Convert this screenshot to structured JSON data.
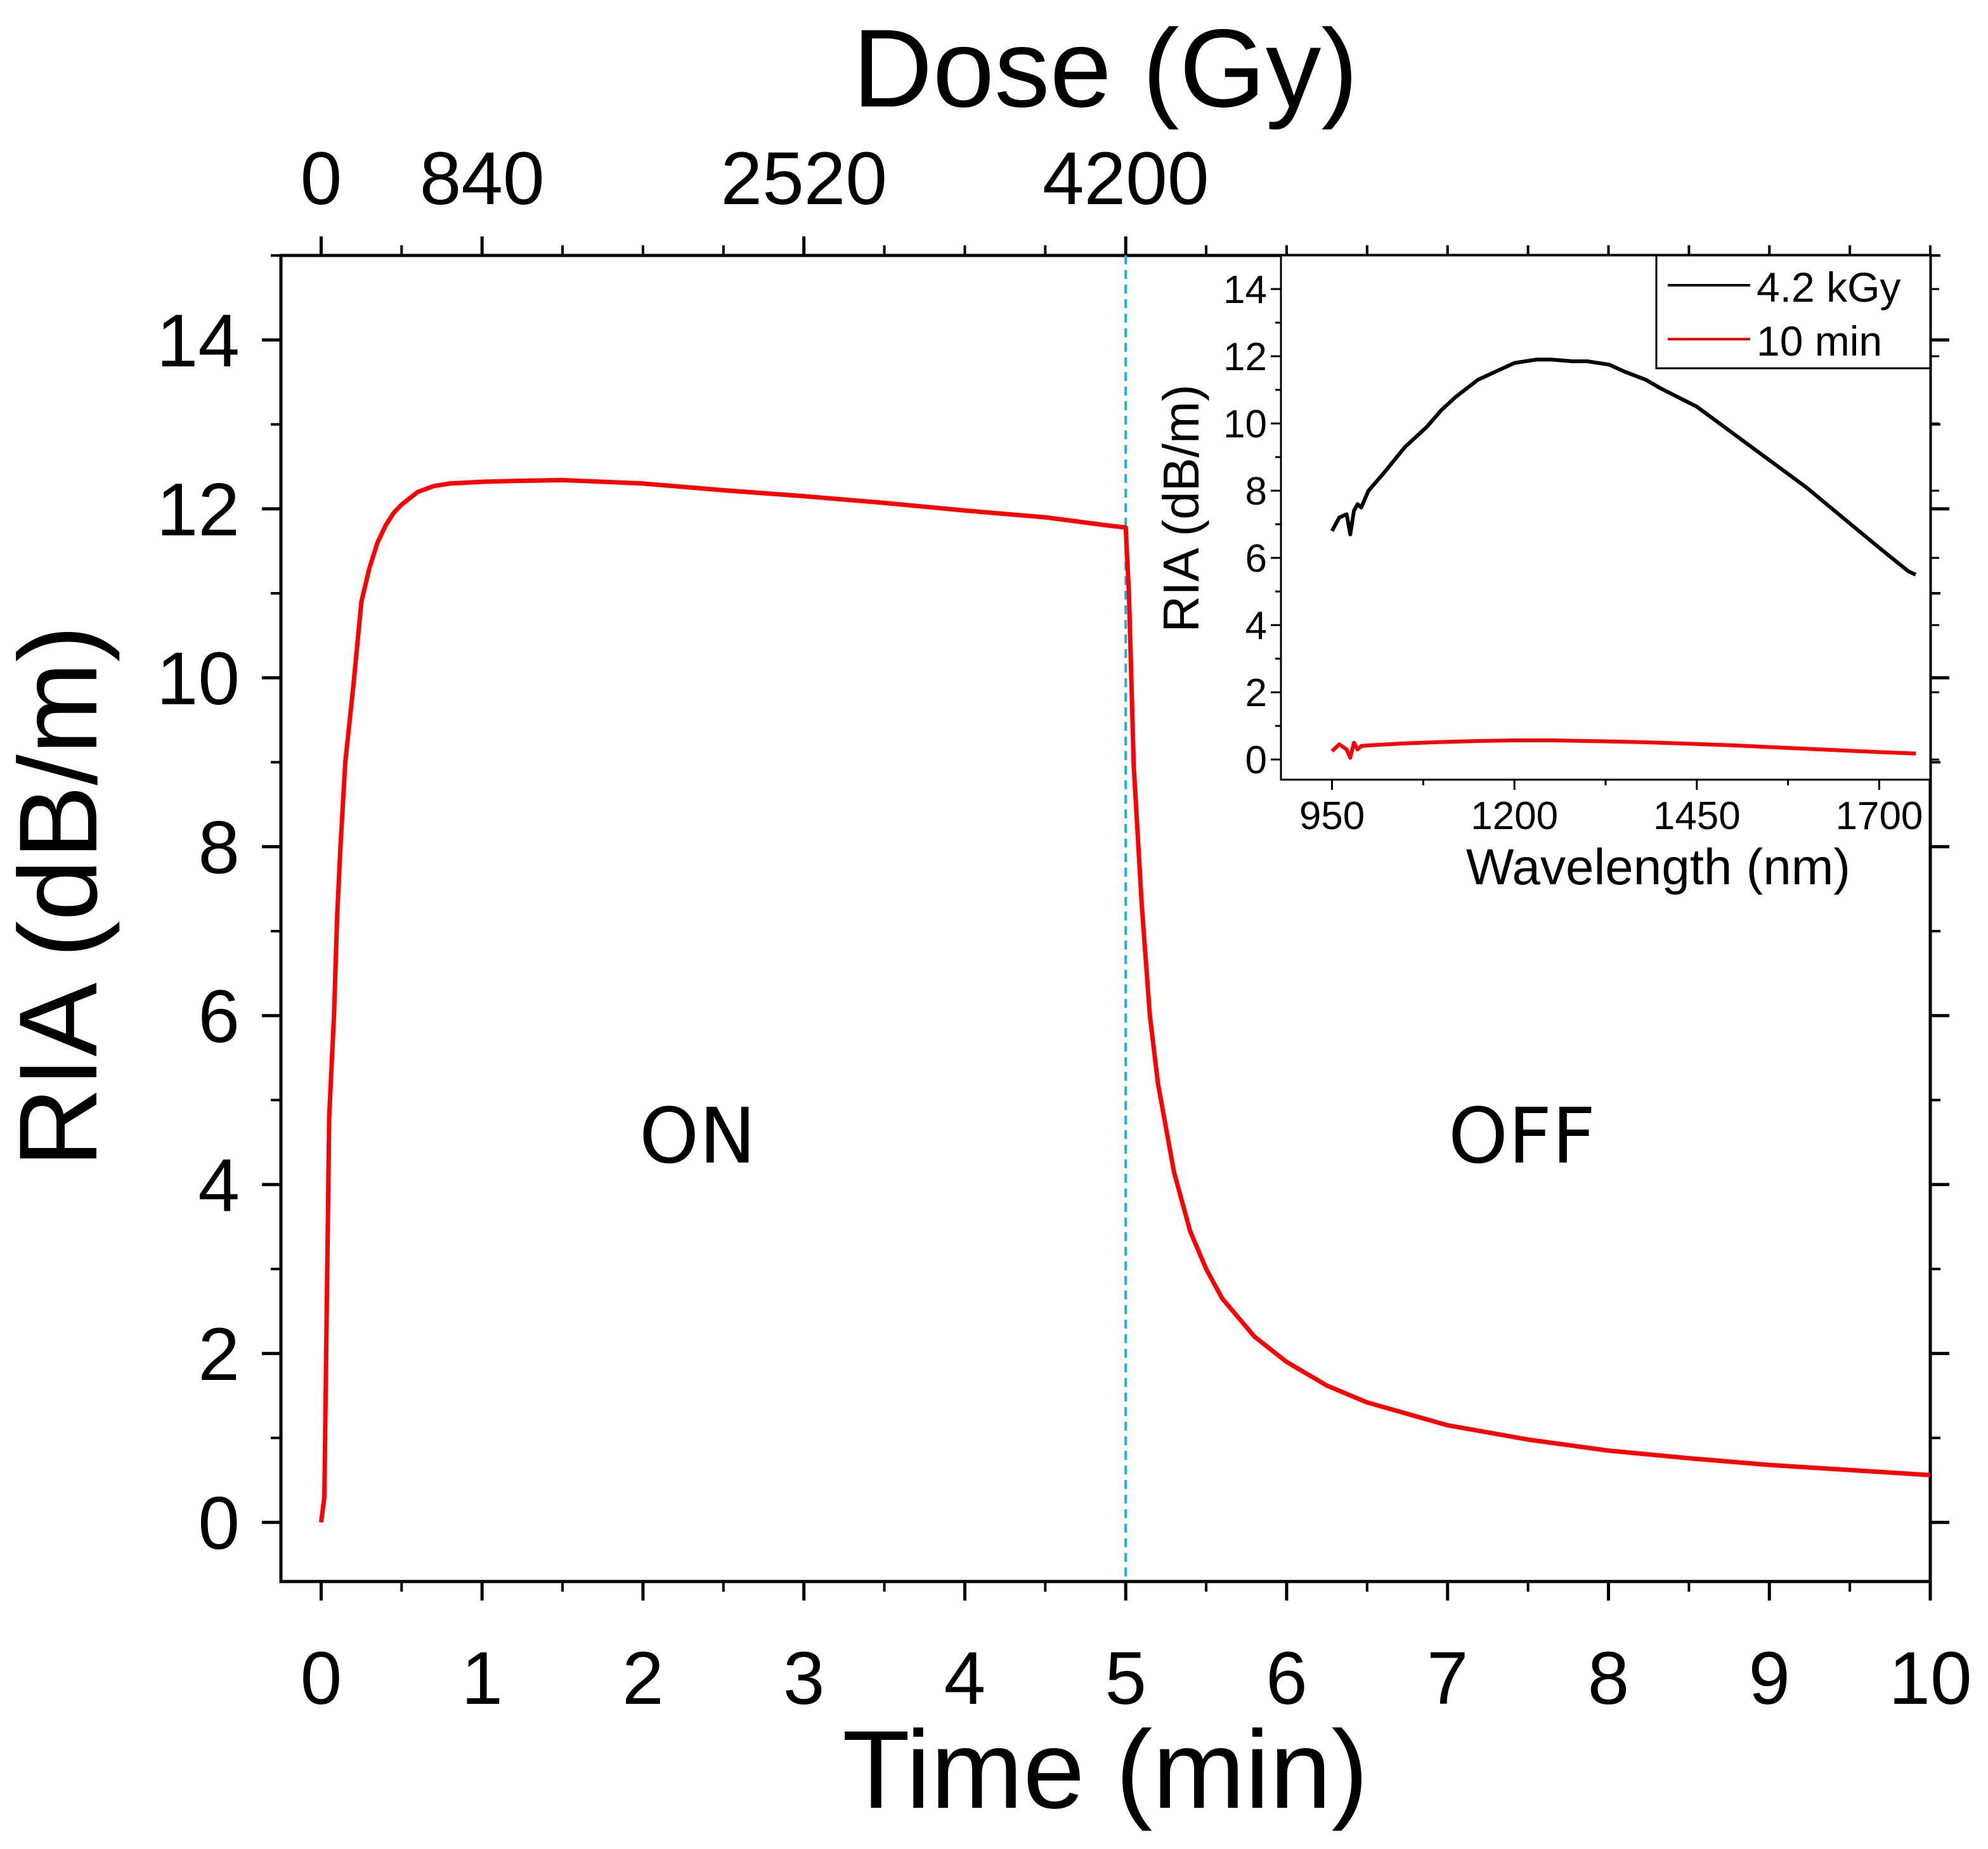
{
  "chart_data": [
    {
      "id": "main",
      "type": "line",
      "xlabel": "Time (min)",
      "ylabel": "RIA (dB/m)",
      "top_axis_label": "Dose (Gy)",
      "xlim": [
        -0.25,
        10
      ],
      "ylim": [
        -0.7,
        15
      ],
      "x_ticks": [
        "0",
        "1",
        "2",
        "3",
        "4",
        "5",
        "6",
        "7",
        "8",
        "9",
        "10"
      ],
      "y_ticks": [
        "0",
        "2",
        "4",
        "6",
        "8",
        "10",
        "12",
        "14"
      ],
      "top_ticks": [
        {
          "time": 0,
          "label": "0"
        },
        {
          "time": 1,
          "label": "840"
        },
        {
          "time": 3,
          "label": "2520"
        },
        {
          "time": 5,
          "label": "4200"
        }
      ],
      "annotations": [
        {
          "text": "ON",
          "x": 2.3,
          "y": 4.7
        },
        {
          "text": "OFF",
          "x": 7.45,
          "y": 4.7
        }
      ],
      "vline": {
        "x": 5,
        "color": "#1ab2e6"
      },
      "series": [
        {
          "name": "RIA",
          "color": "#ff0000",
          "x": [
            0,
            0.02,
            0.05,
            0.08,
            0.1,
            0.12,
            0.15,
            0.2,
            0.25,
            0.3,
            0.35,
            0.4,
            0.45,
            0.5,
            0.6,
            0.7,
            0.8,
            1.0,
            1.2,
            1.5,
            2.0,
            2.5,
            3.0,
            3.5,
            4.0,
            4.5,
            4.9,
            5.0,
            5.02,
            5.05,
            5.1,
            5.15,
            5.2,
            5.3,
            5.4,
            5.5,
            5.6,
            5.8,
            6.0,
            6.25,
            6.5,
            7.0,
            7.5,
            8.0,
            8.5,
            9.0,
            9.5,
            10.0
          ],
          "y": [
            0,
            0.3,
            4.8,
            6.0,
            7.2,
            8.0,
            9.0,
            9.9,
            10.9,
            11.3,
            11.6,
            11.8,
            11.95,
            12.05,
            12.2,
            12.27,
            12.3,
            12.32,
            12.33,
            12.34,
            12.3,
            12.22,
            12.15,
            12.07,
            11.98,
            11.9,
            11.8,
            11.78,
            11.0,
            8.95,
            7.3,
            6.0,
            5.2,
            4.15,
            3.45,
            3.0,
            2.65,
            2.2,
            1.9,
            1.62,
            1.42,
            1.15,
            0.98,
            0.85,
            0.76,
            0.68,
            0.62,
            0.56
          ]
        }
      ]
    },
    {
      "id": "inset",
      "type": "line",
      "xlabel": "Wavelength (nm)",
      "ylabel": "RIA (dB/m)",
      "xlim": [
        880,
        1770
      ],
      "ylim": [
        -0.6,
        15
      ],
      "x_ticks": [
        "950",
        "1200",
        "1450",
        "1700"
      ],
      "y_ticks": [
        "0",
        "2",
        "4",
        "6",
        "8",
        "10",
        "12",
        "14"
      ],
      "legend_position": "top-right",
      "series": [
        {
          "name": "4.2 kGy",
          "color": "#000000",
          "x": [
            950,
            960,
            970,
            975,
            980,
            985,
            990,
            1000,
            1020,
            1050,
            1080,
            1100,
            1120,
            1150,
            1180,
            1200,
            1230,
            1250,
            1280,
            1300,
            1330,
            1350,
            1380,
            1400,
            1450,
            1500,
            1550,
            1600,
            1650,
            1700,
            1720,
            1740,
            1750
          ],
          "y": [
            6.8,
            7.2,
            7.3,
            6.7,
            7.4,
            7.6,
            7.5,
            8.0,
            8.5,
            9.3,
            9.9,
            10.4,
            10.8,
            11.3,
            11.6,
            11.8,
            11.9,
            11.9,
            11.85,
            11.85,
            11.75,
            11.55,
            11.3,
            11.05,
            10.5,
            9.7,
            8.9,
            8.1,
            7.2,
            6.3,
            5.95,
            5.6,
            5.5
          ]
        },
        {
          "name": "10 min",
          "color": "#ff0000",
          "x": [
            950,
            960,
            970,
            975,
            980,
            985,
            990,
            1000,
            1050,
            1100,
            1150,
            1200,
            1250,
            1300,
            1350,
            1400,
            1450,
            1500,
            1550,
            1600,
            1650,
            1700,
            1750
          ],
          "y": [
            0.25,
            0.45,
            0.3,
            0.05,
            0.5,
            0.3,
            0.4,
            0.42,
            0.48,
            0.52,
            0.55,
            0.57,
            0.57,
            0.55,
            0.53,
            0.5,
            0.46,
            0.42,
            0.37,
            0.32,
            0.27,
            0.22,
            0.18
          ]
        }
      ]
    }
  ]
}
